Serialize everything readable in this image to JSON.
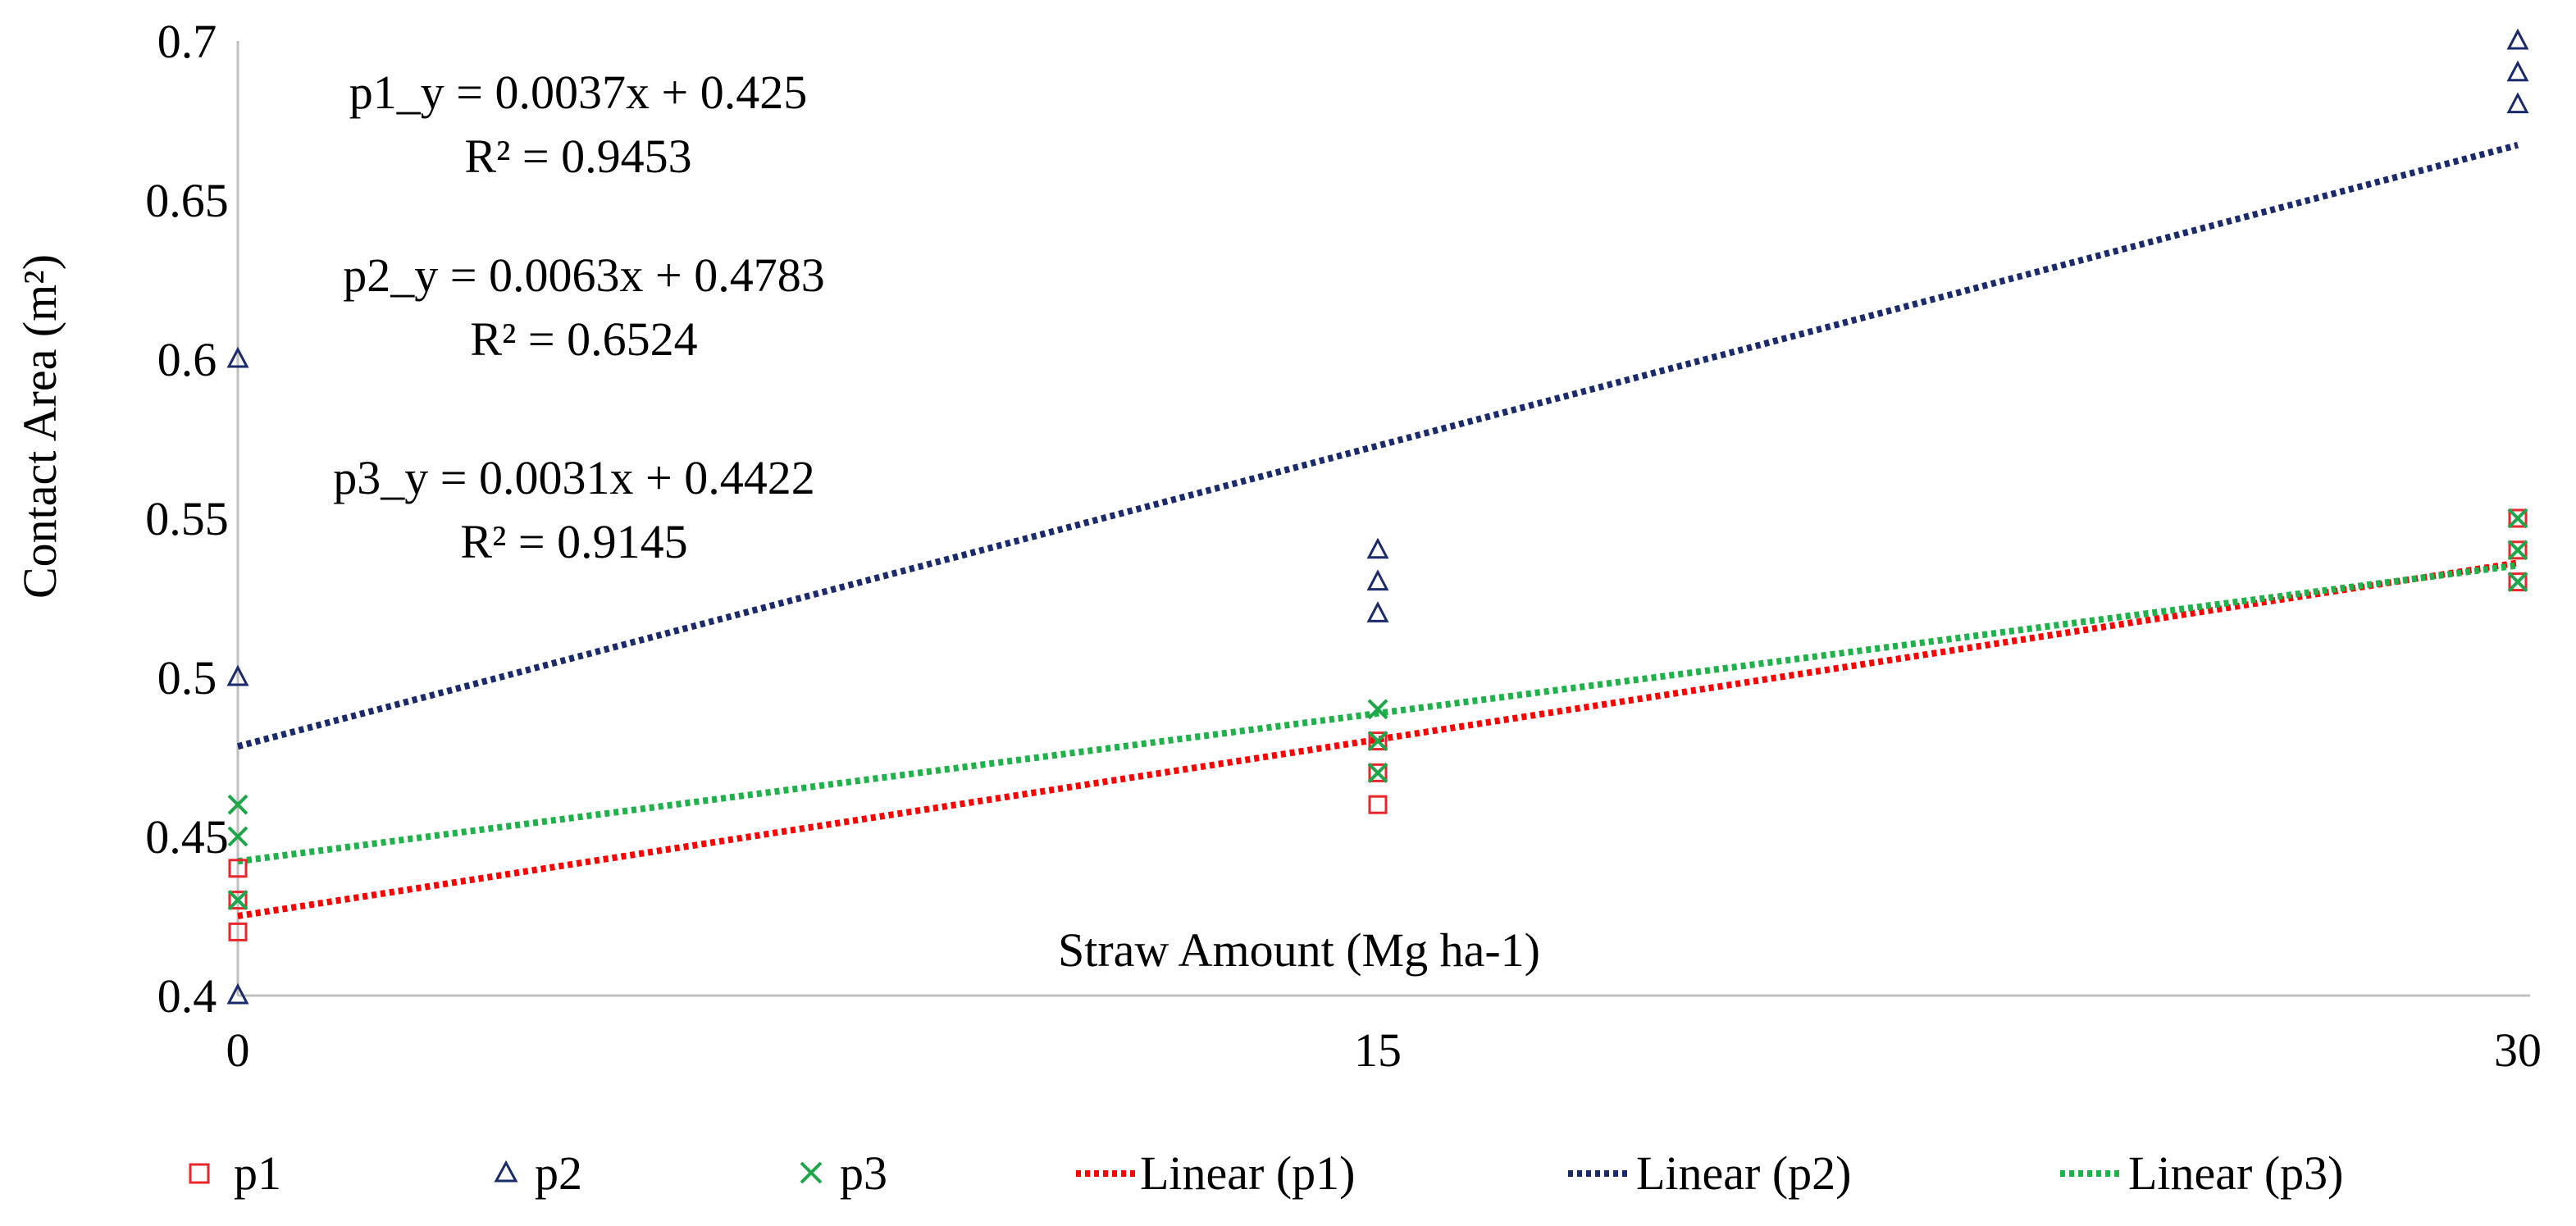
{
  "chart_data": {
    "type": "scatter",
    "title": "",
    "xlabel": "Straw Amount (Mg ha-1)",
    "ylabel": "Contact Area (m²)",
    "xlim": [
      0,
      30
    ],
    "ylim": [
      0.4,
      0.7
    ],
    "xticks": [
      0,
      15,
      30
    ],
    "xtick_labels": [
      "0",
      "15",
      "30"
    ],
    "yticks": [
      0.4,
      0.45,
      0.5,
      0.55,
      0.6,
      0.65,
      0.7
    ],
    "ytick_labels": [
      "0.4",
      "0.45",
      "0.5",
      "0.55",
      "0.6",
      "0.65",
      "0.7"
    ],
    "grid": false,
    "legend_position": "bottom",
    "series": [
      {
        "name": "p1",
        "marker": "square",
        "color": "#E8262B",
        "points": [
          [
            0,
            0.42
          ],
          [
            0,
            0.43
          ],
          [
            0,
            0.44
          ],
          [
            15,
            0.46
          ],
          [
            15,
            0.47
          ],
          [
            15,
            0.48
          ],
          [
            30,
            0.53
          ],
          [
            30,
            0.54
          ],
          [
            30,
            0.55
          ]
        ]
      },
      {
        "name": "p2",
        "marker": "triangle",
        "color": "#1B2A6B",
        "points": [
          [
            0,
            0.4
          ],
          [
            0,
            0.5
          ],
          [
            0,
            0.6
          ],
          [
            15,
            0.52
          ],
          [
            15,
            0.53
          ],
          [
            15,
            0.54
          ],
          [
            30,
            0.68
          ],
          [
            30,
            0.69
          ],
          [
            30,
            0.7
          ]
        ]
      },
      {
        "name": "p3",
        "marker": "x",
        "color": "#1FA64A",
        "points": [
          [
            0,
            0.43
          ],
          [
            0,
            0.45
          ],
          [
            0,
            0.46
          ],
          [
            15,
            0.47
          ],
          [
            15,
            0.48
          ],
          [
            15,
            0.49
          ],
          [
            30,
            0.53
          ],
          [
            30,
            0.54
          ],
          [
            30,
            0.55
          ]
        ]
      }
    ],
    "trendlines": [
      {
        "name": "Linear (p1)",
        "series": "p1",
        "color": "#FF0000",
        "slope": 0.0037,
        "intercept": 0.425,
        "equation": "p1_y = 0.0037x + 0.425",
        "r2": "R² = 0.9453"
      },
      {
        "name": "Linear (p2)",
        "series": "p2",
        "color": "#1B2A6B",
        "slope": 0.0063,
        "intercept": 0.4783,
        "equation": "p2_y = 0.0063x + 0.4783",
        "r2": "R² = 0.6524"
      },
      {
        "name": "Linear (p3)",
        "series": "p3",
        "color": "#1FB14A",
        "slope": 0.0031,
        "intercept": 0.4422,
        "equation": "p3_y = 0.0031x + 0.4422",
        "r2": "R² = 0.9145"
      }
    ]
  }
}
